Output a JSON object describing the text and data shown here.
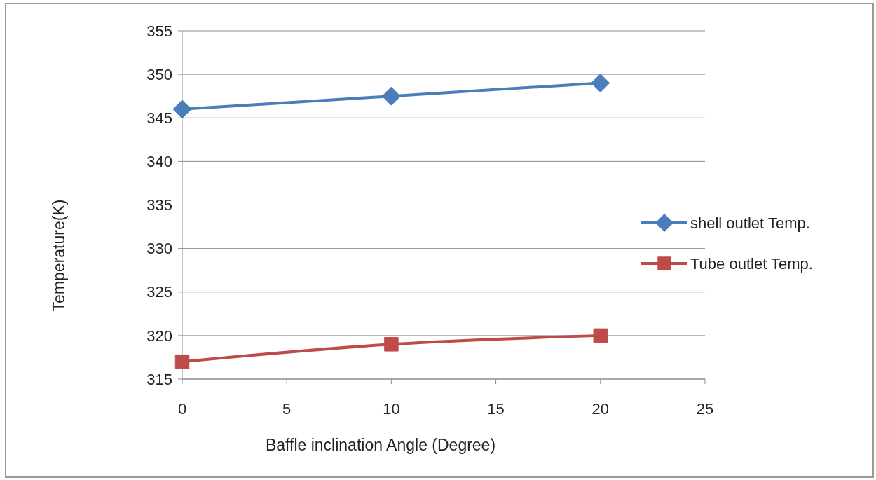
{
  "chart_data": {
    "type": "line",
    "xlabel": "Baffle inclination Angle (Degree)",
    "ylabel": "Temperature(K)",
    "x": [
      0,
      10,
      20
    ],
    "series": [
      {
        "name": "shell outlet Temp.",
        "color": "#4a7ebb",
        "values": [
          346,
          347.5,
          349
        ],
        "marker": "diamond"
      },
      {
        "name": "Tube outlet Temp.",
        "color": "#be4b48",
        "values": [
          317,
          319,
          320
        ],
        "marker": "square"
      }
    ],
    "xlim": [
      0,
      25
    ],
    "xticks": [
      0,
      5,
      10,
      15,
      20,
      25
    ],
    "ylim": [
      315,
      355
    ],
    "yticks": [
      315,
      320,
      325,
      330,
      335,
      340,
      345,
      350,
      355
    ],
    "grid": "y",
    "legend": "right",
    "line_style": "solid"
  }
}
